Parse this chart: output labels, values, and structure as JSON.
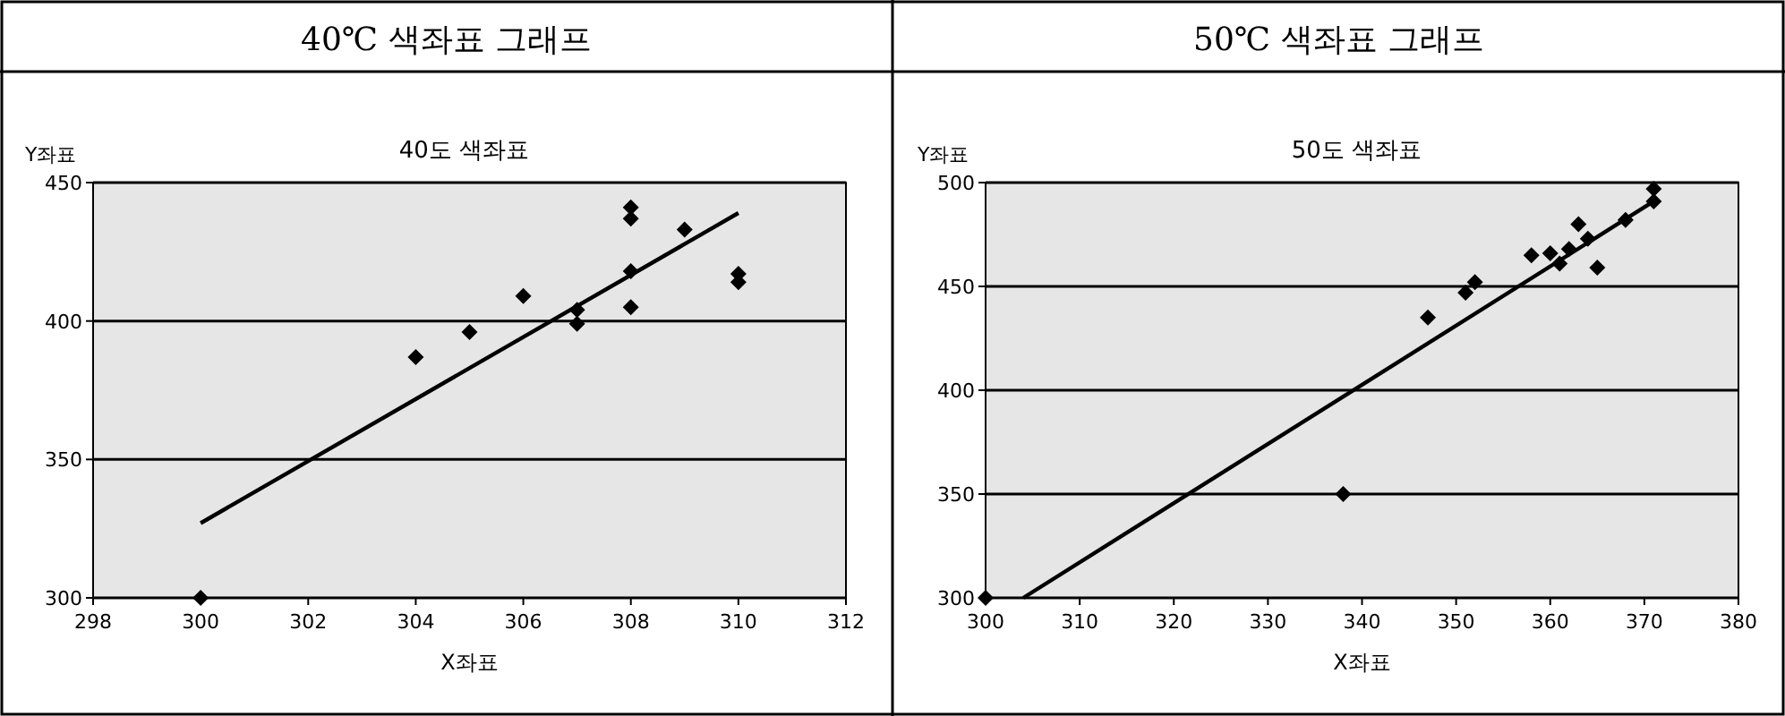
{
  "chart_data": [
    {
      "type": "scatter",
      "title": "40℃ 색좌표 그래프",
      "subtitle": "40도 색좌표",
      "xlabel": "X좌표",
      "ylabel": "Y좌표",
      "xlim": [
        298,
        312
      ],
      "xticks": [
        298,
        300,
        302,
        304,
        306,
        308,
        310,
        312
      ],
      "ylim": [
        300,
        450
      ],
      "yticks": [
        300,
        350,
        400,
        450
      ],
      "grid": "y",
      "marker": "diamond",
      "series": [
        {
          "color": "#000000",
          "x": [
            300,
            304,
            305,
            306,
            307,
            307,
            308,
            308,
            308,
            308,
            309,
            310,
            310
          ],
          "values": [
            300,
            387,
            396,
            409,
            404,
            399,
            441,
            437,
            418,
            405,
            433,
            417,
            414
          ]
        },
        {
          "type": "line",
          "marker": "none",
          "color": "#000000",
          "x": [
            300,
            310
          ],
          "values": [
            327,
            439
          ]
        }
      ]
    },
    {
      "type": "scatter",
      "title": "50℃ 색좌표 그래프",
      "subtitle": "50도 색좌표",
      "xlabel": "X좌표",
      "ylabel": "Y좌표",
      "xlim": [
        300,
        380
      ],
      "xticks": [
        300,
        310,
        320,
        330,
        340,
        350,
        360,
        370,
        380
      ],
      "ylim": [
        300,
        500
      ],
      "yticks": [
        300,
        350,
        400,
        450,
        500
      ],
      "grid": "y",
      "marker": "diamond",
      "series": [
        {
          "color": "#000000",
          "x": [
            300,
            338,
            347,
            351,
            352,
            358,
            360,
            361,
            362,
            363,
            364,
            365,
            368,
            371,
            371
          ],
          "values": [
            300,
            350,
            435,
            447,
            452,
            465,
            466,
            461,
            468,
            480,
            473,
            459,
            482,
            497,
            491
          ]
        },
        {
          "type": "line",
          "marker": "none",
          "color": "#000000",
          "x": [
            304,
            371
          ],
          "values": [
            300,
            491
          ]
        }
      ]
    }
  ]
}
